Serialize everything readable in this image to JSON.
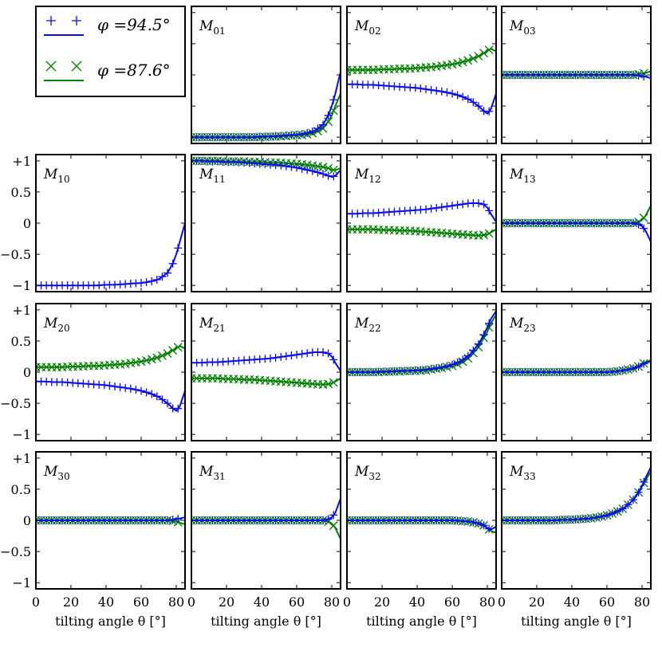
{
  "chart_data": {
    "type": "line",
    "title": "",
    "xlabel": "tilting angle θ [°]",
    "x_range": [
      0,
      85
    ],
    "y_range": [
      -1.1,
      1.1
    ],
    "x_ticks": [
      "0",
      "20",
      "40",
      "60",
      "80"
    ],
    "x_tick_values": [
      0,
      20,
      40,
      60,
      80
    ],
    "y_ticks": [
      "+1",
      "0.5",
      "0",
      "−0.5",
      "−1"
    ],
    "y_tick_values": [
      1,
      0.5,
      0,
      -0.5,
      -1
    ],
    "legend": [
      {
        "name": "φ =94.5°",
        "marker": "+",
        "color": "#0b0bef"
      },
      {
        "name": "φ =87.6°",
        "marker": "x",
        "color": "#007f00"
      }
    ],
    "series_x": [
      0,
      5,
      10,
      15,
      20,
      25,
      30,
      35,
      40,
      45,
      50,
      55,
      60,
      65,
      70,
      75,
      78,
      80,
      82,
      85
    ],
    "panels": [
      {
        "label": "M",
        "sub": "01",
        "series": [
          [
            -1,
            -1,
            -1,
            -1,
            -1,
            -1,
            -1,
            -1,
            -0.99,
            -0.99,
            -0.98,
            -0.97,
            -0.96,
            -0.94,
            -0.9,
            -0.8,
            -0.65,
            -0.5,
            -0.3,
            0.05
          ],
          [
            -1,
            -1,
            -1,
            -1,
            -1,
            -1,
            -1,
            -1,
            -1,
            -0.99,
            -0.99,
            -0.98,
            -0.97,
            -0.96,
            -0.93,
            -0.86,
            -0.75,
            -0.65,
            -0.5,
            -0.3
          ]
        ]
      },
      {
        "label": "M",
        "sub": "02",
        "series": [
          [
            -0.15,
            -0.15,
            -0.16,
            -0.16,
            -0.17,
            -0.18,
            -0.19,
            -0.2,
            -0.21,
            -0.23,
            -0.25,
            -0.27,
            -0.3,
            -0.34,
            -0.4,
            -0.5,
            -0.58,
            -0.62,
            -0.55,
            -0.3
          ],
          [
            0.08,
            0.08,
            0.08,
            0.08,
            0.09,
            0.09,
            0.1,
            0.1,
            0.11,
            0.12,
            0.13,
            0.15,
            0.17,
            0.2,
            0.24,
            0.3,
            0.35,
            0.38,
            0.42,
            0.38
          ]
        ]
      },
      {
        "label": "M",
        "sub": "03",
        "series": [
          [
            0,
            0,
            0,
            0,
            0,
            0,
            0,
            0,
            0,
            0,
            0,
            0,
            0,
            0,
            0,
            0,
            -0.01,
            -0.02,
            -0.03,
            -0.05
          ],
          [
            0,
            0,
            0,
            0,
            0,
            0,
            0,
            0,
            0,
            0,
            0,
            0,
            0,
            0,
            0,
            0,
            0.01,
            0.02,
            0.03,
            0.06
          ]
        ]
      },
      {
        "label": "M",
        "sub": "10",
        "series": [
          [
            -1,
            -1,
            -1,
            -1,
            -1,
            -1,
            -1,
            -1,
            -0.99,
            -0.99,
            -0.98,
            -0.97,
            -0.96,
            -0.94,
            -0.9,
            -0.8,
            -0.65,
            -0.5,
            -0.3,
            0
          ]
        ],
        "series2": null
      },
      {
        "label": "M",
        "sub": "11",
        "series": [
          [
            1,
            1,
            0.99,
            0.99,
            0.98,
            0.98,
            0.97,
            0.96,
            0.95,
            0.94,
            0.93,
            0.91,
            0.89,
            0.86,
            0.83,
            0.79,
            0.76,
            0.74,
            0.76,
            0.85
          ],
          [
            1,
            1,
            1,
            1,
            0.99,
            0.99,
            0.99,
            0.98,
            0.98,
            0.97,
            0.97,
            0.96,
            0.95,
            0.94,
            0.92,
            0.9,
            0.88,
            0.86,
            0.85,
            0.88
          ]
        ]
      },
      {
        "label": "M",
        "sub": "12",
        "series": [
          [
            0.15,
            0.15,
            0.16,
            0.16,
            0.17,
            0.18,
            0.19,
            0.2,
            0.21,
            0.22,
            0.24,
            0.26,
            0.28,
            0.3,
            0.32,
            0.32,
            0.3,
            0.25,
            0.15,
            0.02
          ],
          [
            -0.1,
            -0.1,
            -0.1,
            -0.1,
            -0.11,
            -0.11,
            -0.12,
            -0.12,
            -0.13,
            -0.14,
            -0.15,
            -0.16,
            -0.17,
            -0.18,
            -0.19,
            -0.2,
            -0.19,
            -0.18,
            -0.15,
            -0.1
          ]
        ]
      },
      {
        "label": "M",
        "sub": "13",
        "series": [
          [
            0,
            0,
            0,
            0,
            0,
            0,
            0,
            0,
            0,
            0,
            0,
            0,
            0,
            0,
            0,
            0,
            -0.02,
            -0.05,
            -0.12,
            -0.3
          ],
          [
            0,
            0,
            0,
            0,
            0,
            0,
            0,
            0,
            0,
            0,
            0,
            0,
            0,
            0,
            0,
            0,
            0.02,
            0.05,
            0.12,
            0.28
          ]
        ]
      },
      {
        "label": "M",
        "sub": "20",
        "series": [
          [
            -0.15,
            -0.15,
            -0.16,
            -0.16,
            -0.17,
            -0.18,
            -0.19,
            -0.2,
            -0.21,
            -0.23,
            -0.25,
            -0.27,
            -0.3,
            -0.34,
            -0.4,
            -0.5,
            -0.58,
            -0.62,
            -0.55,
            -0.3
          ],
          [
            0.08,
            0.08,
            0.08,
            0.08,
            0.09,
            0.09,
            0.1,
            0.1,
            0.11,
            0.12,
            0.13,
            0.15,
            0.17,
            0.2,
            0.24,
            0.3,
            0.35,
            0.38,
            0.42,
            0.38
          ]
        ]
      },
      {
        "label": "M",
        "sub": "21",
        "series": [
          [
            0.15,
            0.15,
            0.16,
            0.16,
            0.17,
            0.18,
            0.19,
            0.2,
            0.21,
            0.22,
            0.24,
            0.26,
            0.28,
            0.3,
            0.32,
            0.32,
            0.3,
            0.25,
            0.15,
            0.02
          ],
          [
            -0.1,
            -0.1,
            -0.1,
            -0.1,
            -0.11,
            -0.11,
            -0.12,
            -0.12,
            -0.13,
            -0.14,
            -0.15,
            -0.16,
            -0.17,
            -0.18,
            -0.19,
            -0.2,
            -0.19,
            -0.18,
            -0.15,
            -0.1
          ]
        ]
      },
      {
        "label": "M",
        "sub": "22",
        "series": [
          [
            0,
            0,
            0,
            0,
            0.01,
            0.01,
            0.02,
            0.02,
            0.03,
            0.04,
            0.06,
            0.08,
            0.12,
            0.18,
            0.28,
            0.45,
            0.6,
            0.72,
            0.85,
            0.98
          ],
          [
            0,
            0,
            0,
            0,
            0,
            0.01,
            0.01,
            0.02,
            0.02,
            0.03,
            0.05,
            0.07,
            0.1,
            0.15,
            0.24,
            0.4,
            0.55,
            0.65,
            0.78,
            0.92
          ]
        ]
      },
      {
        "label": "M",
        "sub": "23",
        "series": [
          [
            0,
            0,
            0,
            0,
            0,
            0,
            0,
            0,
            0,
            0,
            0,
            0,
            0,
            0.01,
            0.03,
            0.06,
            0.09,
            0.12,
            0.15,
            0.17
          ],
          [
            0,
            0,
            0,
            0,
            0,
            0,
            0,
            0,
            0,
            0,
            0,
            0,
            0,
            0.01,
            0.03,
            0.06,
            0.09,
            0.12,
            0.16,
            0.19
          ]
        ]
      },
      {
        "label": "M",
        "sub": "30",
        "series": [
          [
            0,
            0,
            0,
            0,
            0,
            0,
            0,
            0,
            0,
            0,
            0,
            0,
            0,
            0,
            0,
            0,
            0.01,
            0.02,
            0.03,
            0.05
          ],
          [
            0,
            0,
            0,
            0,
            0,
            0,
            0,
            0,
            0,
            0,
            0,
            0,
            0,
            0,
            0,
            0,
            -0.01,
            -0.02,
            -0.04,
            -0.06
          ]
        ]
      },
      {
        "label": "M",
        "sub": "31",
        "series": [
          [
            0,
            0,
            0,
            0,
            0,
            0,
            0,
            0,
            0,
            0,
            0,
            0,
            0,
            0,
            0,
            0,
            0.02,
            0.05,
            0.12,
            0.35
          ],
          [
            0,
            0,
            0,
            0,
            0,
            0,
            0,
            0,
            0,
            0,
            0,
            0,
            0,
            0,
            0,
            0,
            -0.02,
            -0.05,
            -0.12,
            -0.3
          ]
        ]
      },
      {
        "label": "M",
        "sub": "32",
        "series": [
          [
            0,
            0,
            0,
            0,
            0,
            0,
            0,
            0,
            0,
            0,
            0,
            0,
            0,
            -0.01,
            -0.02,
            -0.05,
            -0.08,
            -0.12,
            -0.15,
            -0.1
          ],
          [
            0,
            0,
            0,
            0,
            0,
            0,
            0,
            0,
            0,
            0,
            0,
            0,
            0,
            -0.01,
            -0.02,
            -0.05,
            -0.08,
            -0.12,
            -0.17,
            -0.2
          ]
        ]
      },
      {
        "label": "M",
        "sub": "33",
        "series": [
          [
            0,
            0,
            0,
            0,
            0,
            0,
            0,
            0.01,
            0.01,
            0.02,
            0.03,
            0.05,
            0.08,
            0.13,
            0.2,
            0.33,
            0.45,
            0.55,
            0.68,
            0.85
          ],
          [
            0,
            0,
            0,
            0,
            0,
            0,
            0,
            0.01,
            0.01,
            0.02,
            0.03,
            0.05,
            0.08,
            0.13,
            0.2,
            0.33,
            0.45,
            0.55,
            0.65,
            0.78
          ]
        ]
      }
    ]
  }
}
